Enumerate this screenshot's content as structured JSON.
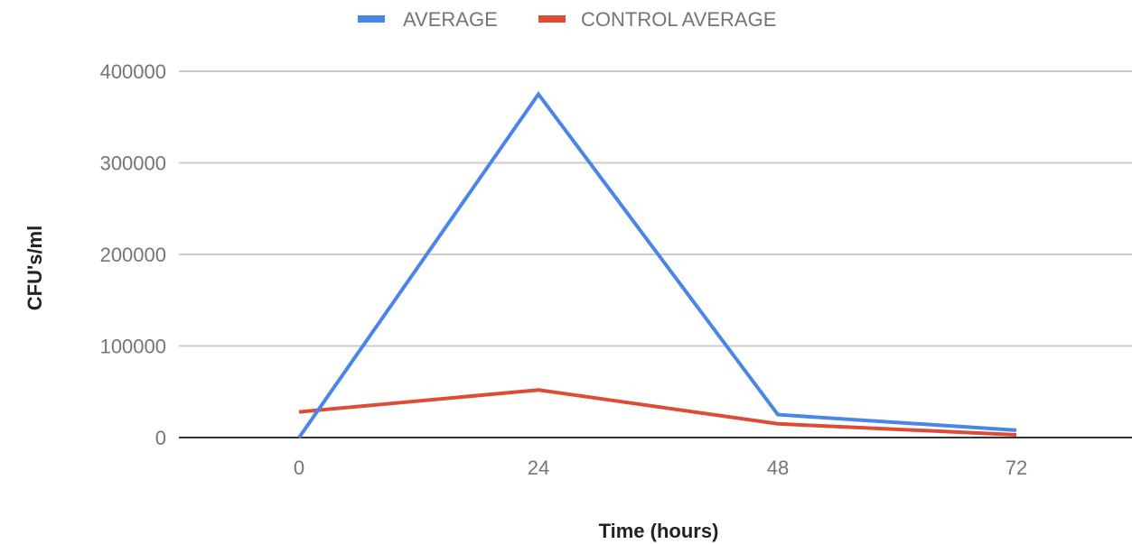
{
  "chart_data": {
    "type": "line",
    "x": [
      0,
      24,
      48,
      72
    ],
    "series": [
      {
        "name": "AVERAGE",
        "color": "#4a86e8",
        "values": [
          0,
          375000,
          25000,
          8000
        ]
      },
      {
        "name": "CONTROL AVERAGE",
        "color": "#dd4b39",
        "values": [
          28000,
          52000,
          15000,
          3000
        ]
      }
    ],
    "xlabel": "Time (hours)",
    "ylabel": "CFU's/ml",
    "x_ticks": [
      "0",
      "24",
      "48",
      "72"
    ],
    "y_ticks": [
      "0",
      "100000",
      "200000",
      "300000",
      "400000"
    ],
    "ylim": [
      0,
      400000
    ],
    "legend_position": "top",
    "grid": true
  }
}
